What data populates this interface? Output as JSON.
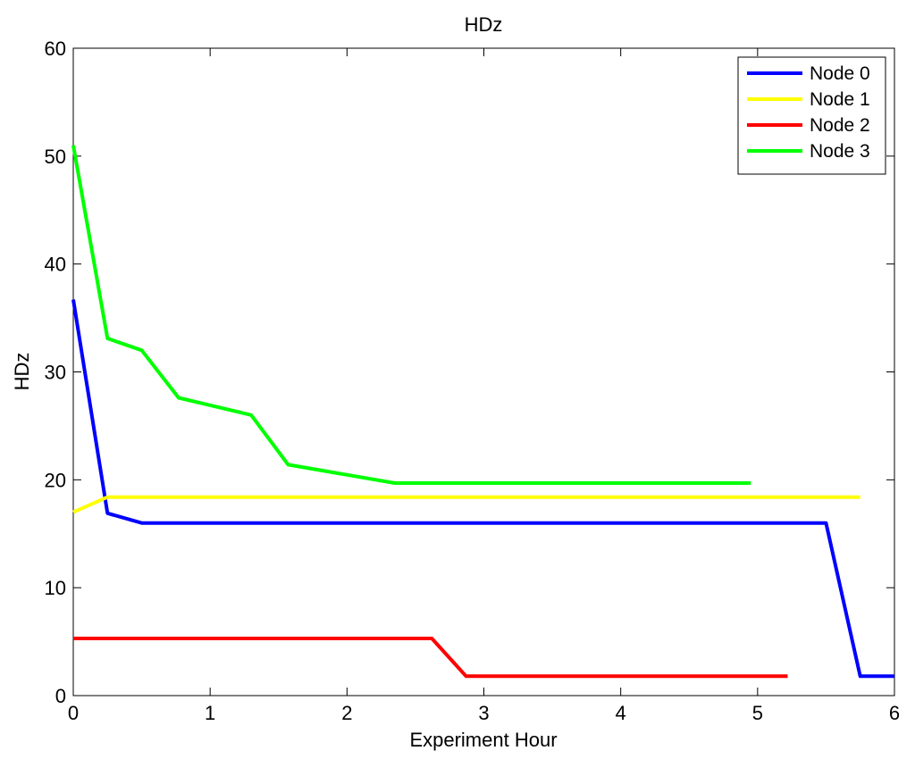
{
  "chart_data": {
    "type": "line",
    "title": "HDz",
    "xlabel": "Experiment Hour",
    "ylabel": "HDz",
    "xlim": [
      0,
      6
    ],
    "ylim": [
      0,
      60
    ],
    "xticks": [
      "0",
      "1",
      "2",
      "3",
      "4",
      "5",
      "6"
    ],
    "yticks": [
      "0",
      "10",
      "20",
      "30",
      "40",
      "50",
      "60"
    ],
    "grid": false,
    "legend_position": "top-right",
    "series": [
      {
        "name": "Node 0",
        "color": "#0000ff",
        "x": [
          0,
          0.25,
          0.5,
          5.5,
          5.75,
          6.0
        ],
        "y": [
          36.7,
          16.9,
          16.0,
          16.0,
          1.8,
          1.8
        ]
      },
      {
        "name": "Node 1",
        "color": "#ffff00",
        "x": [
          0,
          0.25,
          5.75
        ],
        "y": [
          17.0,
          18.4,
          18.4
        ]
      },
      {
        "name": "Node 2",
        "color": "#ff0000",
        "x": [
          0,
          2.62,
          2.87,
          5.22
        ],
        "y": [
          5.3,
          5.3,
          1.8,
          1.8
        ]
      },
      {
        "name": "Node 3",
        "color": "#00ff00",
        "x": [
          0,
          0.25,
          0.5,
          0.77,
          1.3,
          1.57,
          2.35,
          4.95
        ],
        "y": [
          51.0,
          33.1,
          32.0,
          27.6,
          26.0,
          21.4,
          19.7,
          19.7
        ]
      }
    ]
  }
}
